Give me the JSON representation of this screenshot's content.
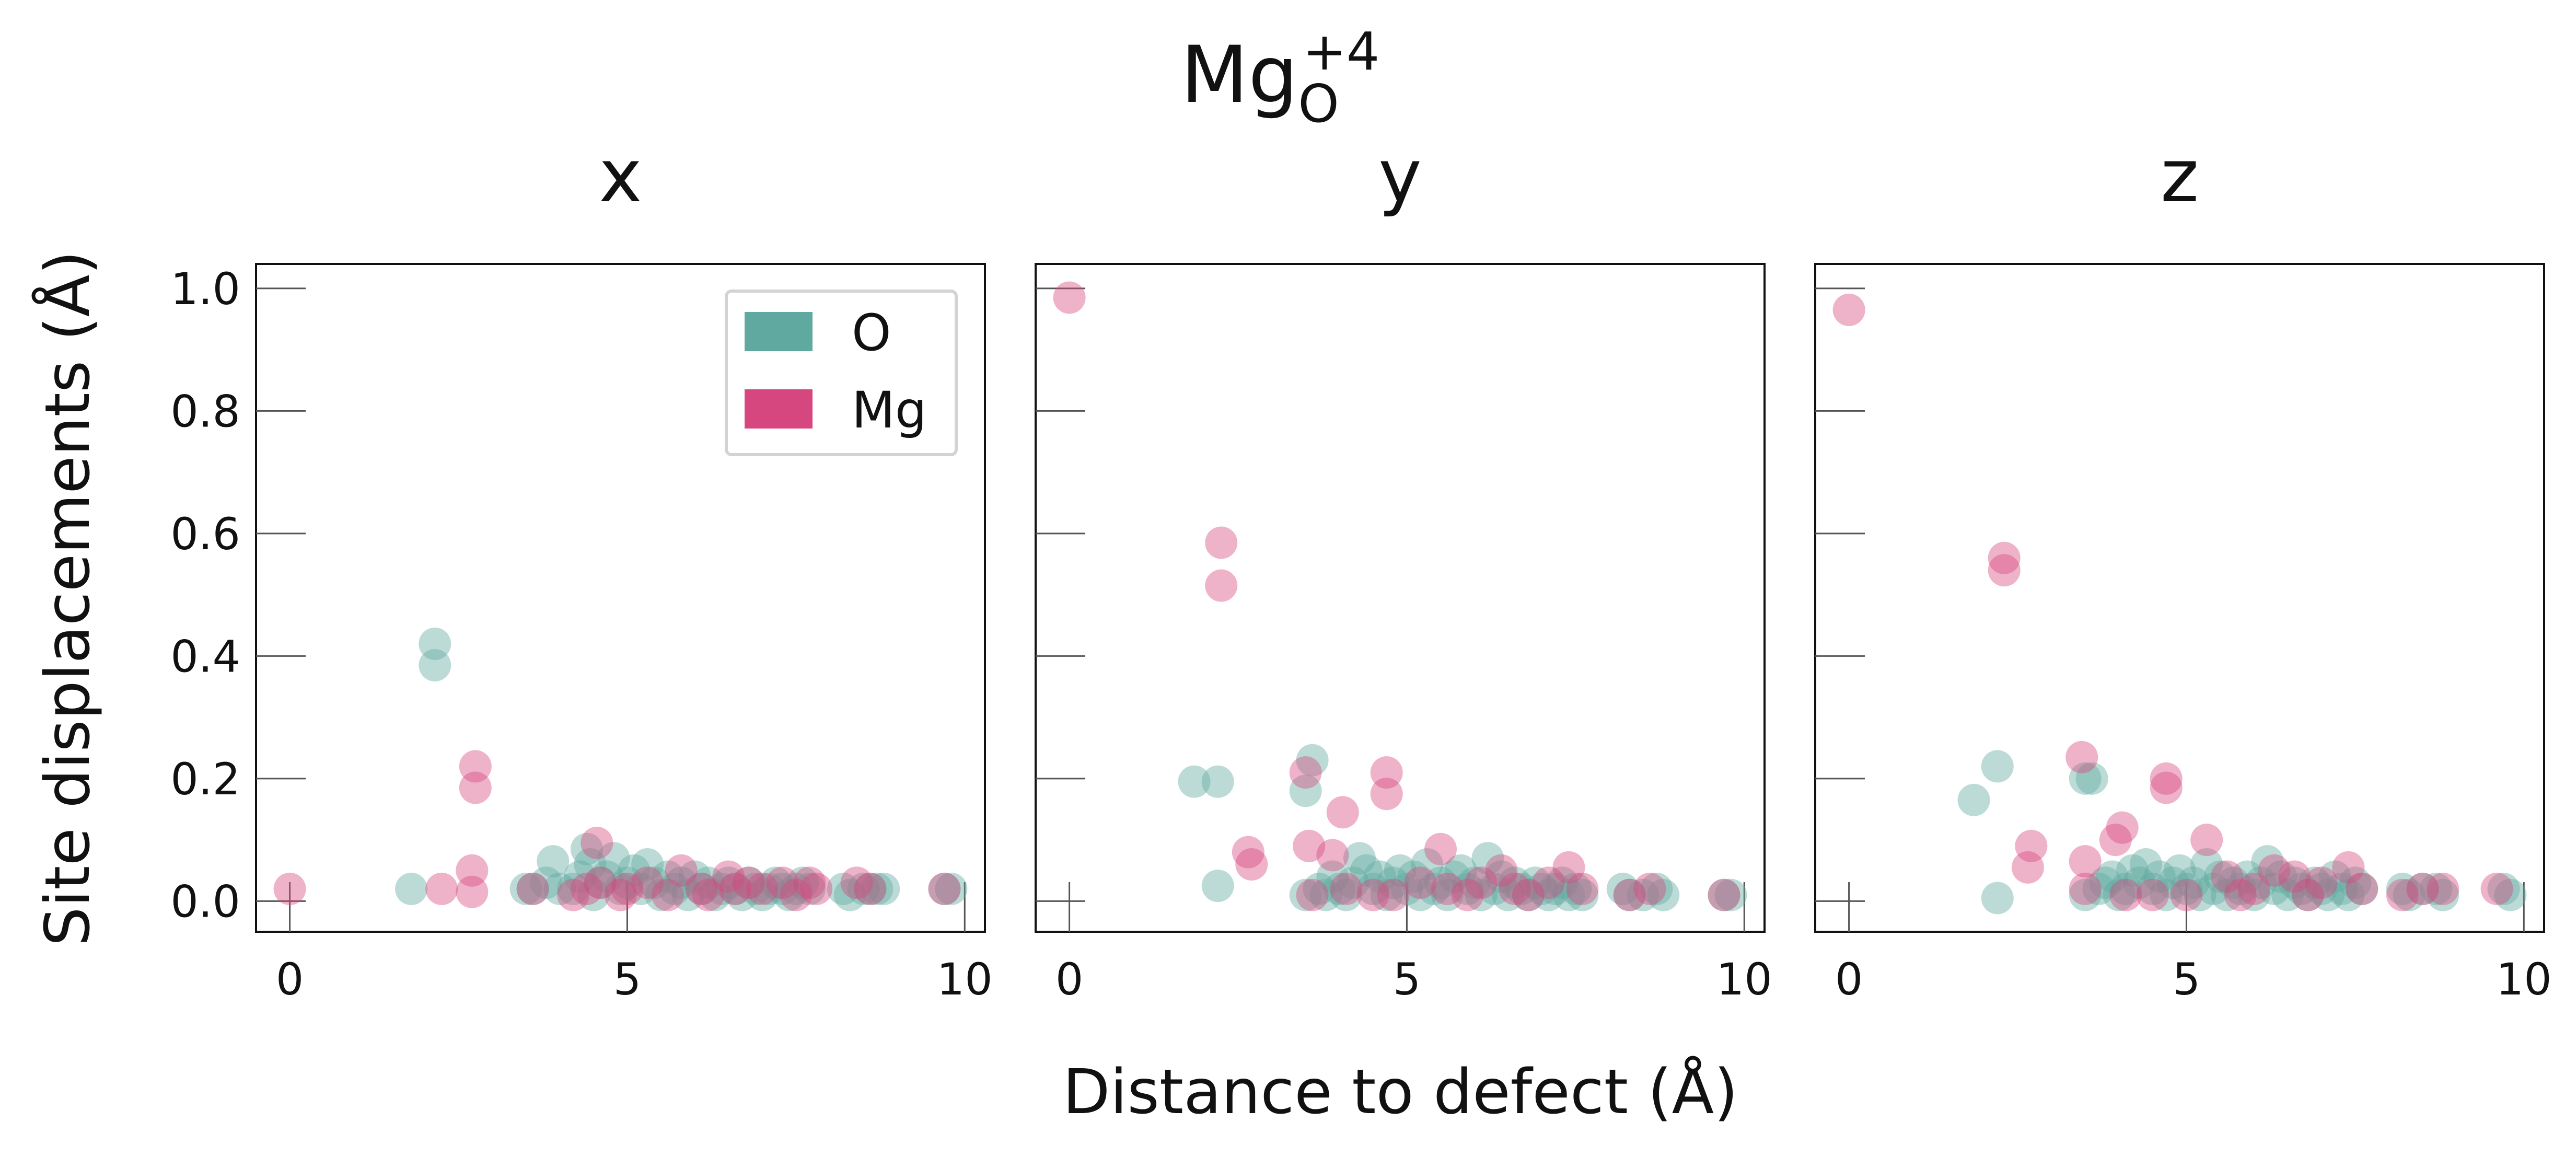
{
  "suptitle": {
    "base": "Mg",
    "superscript": "+4",
    "subscript": "O"
  },
  "xlabel": "Distance to defect (Å)",
  "ylabel": "Site displacements (Å)",
  "legend": {
    "placement": "top-right of first panel",
    "entries": [
      {
        "label": "O",
        "color": "#5fa9a0"
      },
      {
        "label": "Mg",
        "color": "#d6477f"
      }
    ]
  },
  "chart_data": [
    {
      "type": "scatter",
      "title": "x",
      "xlim": [
        -0.5,
        10.3
      ],
      "ylim": [
        -0.05,
        1.04
      ],
      "xticks": [
        0,
        5,
        10
      ],
      "xtick_labels": [
        "0",
        "5",
        "10"
      ],
      "yticks": [
        0.0,
        0.2,
        0.4,
        0.6,
        0.8,
        1.0
      ],
      "ytick_labels": [
        "0.0",
        "0.2",
        "0.4",
        "0.6",
        "0.8",
        "1.0"
      ],
      "series": [
        {
          "name": "O",
          "color": "#5fa9a0",
          "points": [
            [
              1.8,
              0.02
            ],
            [
              2.15,
              0.42
            ],
            [
              2.15,
              0.385
            ],
            [
              3.5,
              0.02
            ],
            [
              3.6,
              0.02
            ],
            [
              3.8,
              0.03
            ],
            [
              3.9,
              0.065
            ],
            [
              4.0,
              0.02
            ],
            [
              4.2,
              0.02
            ],
            [
              4.3,
              0.04
            ],
            [
              4.4,
              0.085
            ],
            [
              4.45,
              0.06
            ],
            [
              4.5,
              0.01
            ],
            [
              4.6,
              0.03
            ],
            [
              4.7,
              0.04
            ],
            [
              4.8,
              0.07
            ],
            [
              4.9,
              0.02
            ],
            [
              5.0,
              0.03
            ],
            [
              5.1,
              0.05
            ],
            [
              5.2,
              0.02
            ],
            [
              5.3,
              0.06
            ],
            [
              5.4,
              0.03
            ],
            [
              5.5,
              0.01
            ],
            [
              5.6,
              0.04
            ],
            [
              5.7,
              0.02
            ],
            [
              5.8,
              0.03
            ],
            [
              5.9,
              0.01
            ],
            [
              6.0,
              0.04
            ],
            [
              6.1,
              0.02
            ],
            [
              6.2,
              0.03
            ],
            [
              6.3,
              0.01
            ],
            [
              6.4,
              0.02
            ],
            [
              6.5,
              0.03
            ],
            [
              6.6,
              0.02
            ],
            [
              6.7,
              0.01
            ],
            [
              6.8,
              0.03
            ],
            [
              6.9,
              0.02
            ],
            [
              7.0,
              0.01
            ],
            [
              7.1,
              0.02
            ],
            [
              7.2,
              0.03
            ],
            [
              7.3,
              0.02
            ],
            [
              7.4,
              0.01
            ],
            [
              7.5,
              0.02
            ],
            [
              7.6,
              0.03
            ],
            [
              7.7,
              0.02
            ],
            [
              8.2,
              0.02
            ],
            [
              8.3,
              0.01
            ],
            [
              8.5,
              0.02
            ],
            [
              8.6,
              0.02
            ],
            [
              8.7,
              0.02
            ],
            [
              8.8,
              0.02
            ],
            [
              9.7,
              0.02
            ],
            [
              9.8,
              0.02
            ]
          ]
        },
        {
          "name": "Mg",
          "color": "#d6477f",
          "points": [
            [
              0.0,
              0.02
            ],
            [
              2.25,
              0.02
            ],
            [
              2.7,
              0.05
            ],
            [
              2.7,
              0.015
            ],
            [
              2.75,
              0.22
            ],
            [
              2.75,
              0.185
            ],
            [
              3.6,
              0.02
            ],
            [
              4.2,
              0.01
            ],
            [
              4.4,
              0.02
            ],
            [
              4.55,
              0.095
            ],
            [
              4.6,
              0.03
            ],
            [
              4.9,
              0.01
            ],
            [
              5.0,
              0.02
            ],
            [
              5.3,
              0.03
            ],
            [
              5.6,
              0.01
            ],
            [
              5.8,
              0.05
            ],
            [
              6.1,
              0.02
            ],
            [
              6.2,
              0.01
            ],
            [
              6.5,
              0.04
            ],
            [
              6.6,
              0.02
            ],
            [
              6.8,
              0.03
            ],
            [
              7.0,
              0.02
            ],
            [
              7.3,
              0.03
            ],
            [
              7.5,
              0.01
            ],
            [
              7.7,
              0.03
            ],
            [
              7.8,
              0.02
            ],
            [
              8.4,
              0.03
            ],
            [
              8.6,
              0.02
            ],
            [
              9.7,
              0.02
            ]
          ]
        }
      ]
    },
    {
      "type": "scatter",
      "title": "y",
      "xlim": [
        -0.5,
        10.3
      ],
      "ylim": [
        -0.05,
        1.04
      ],
      "xticks": [
        0,
        5,
        10
      ],
      "xtick_labels": [
        "0",
        "5",
        "10"
      ],
      "yticks": [
        0.0,
        0.2,
        0.4,
        0.6,
        0.8,
        1.0
      ],
      "ytick_labels": [
        "",
        "",
        "",
        "",
        "",
        ""
      ],
      "series": [
        {
          "name": "O",
          "color": "#5fa9a0",
          "points": [
            [
              1.85,
              0.195
            ],
            [
              2.2,
              0.195
            ],
            [
              2.2,
              0.025
            ],
            [
              3.5,
              0.01
            ],
            [
              3.5,
              0.18
            ],
            [
              3.6,
              0.23
            ],
            [
              3.7,
              0.02
            ],
            [
              3.8,
              0.01
            ],
            [
              3.9,
              0.04
            ],
            [
              4.0,
              0.02
            ],
            [
              4.1,
              0.01
            ],
            [
              4.2,
              0.03
            ],
            [
              4.3,
              0.07
            ],
            [
              4.4,
              0.05
            ],
            [
              4.5,
              0.02
            ],
            [
              4.6,
              0.04
            ],
            [
              4.7,
              0.01
            ],
            [
              4.8,
              0.03
            ],
            [
              4.9,
              0.05
            ],
            [
              5.0,
              0.02
            ],
            [
              5.1,
              0.04
            ],
            [
              5.2,
              0.01
            ],
            [
              5.3,
              0.06
            ],
            [
              5.4,
              0.02
            ],
            [
              5.5,
              0.03
            ],
            [
              5.6,
              0.01
            ],
            [
              5.7,
              0.04
            ],
            [
              5.8,
              0.05
            ],
            [
              5.9,
              0.02
            ],
            [
              6.0,
              0.03
            ],
            [
              6.1,
              0.01
            ],
            [
              6.2,
              0.07
            ],
            [
              6.3,
              0.02
            ],
            [
              6.4,
              0.04
            ],
            [
              6.5,
              0.01
            ],
            [
              6.6,
              0.03
            ],
            [
              6.7,
              0.02
            ],
            [
              6.8,
              0.01
            ],
            [
              6.9,
              0.03
            ],
            [
              7.0,
              0.02
            ],
            [
              7.1,
              0.01
            ],
            [
              7.2,
              0.02
            ],
            [
              7.3,
              0.03
            ],
            [
              7.4,
              0.01
            ],
            [
              7.5,
              0.02
            ],
            [
              7.6,
              0.01
            ],
            [
              8.2,
              0.02
            ],
            [
              8.3,
              0.01
            ],
            [
              8.5,
              0.01
            ],
            [
              8.7,
              0.02
            ],
            [
              8.8,
              0.01
            ],
            [
              9.7,
              0.01
            ],
            [
              9.8,
              0.01
            ]
          ]
        },
        {
          "name": "Mg",
          "color": "#d6477f",
          "points": [
            [
              0.0,
              0.985
            ],
            [
              2.25,
              0.585
            ],
            [
              2.25,
              0.515
            ],
            [
              2.65,
              0.08
            ],
            [
              2.7,
              0.06
            ],
            [
              3.5,
              0.21
            ],
            [
              3.55,
              0.09
            ],
            [
              3.6,
              0.01
            ],
            [
              3.9,
              0.075
            ],
            [
              4.05,
              0.145
            ],
            [
              4.1,
              0.02
            ],
            [
              4.5,
              0.01
            ],
            [
              4.7,
              0.21
            ],
            [
              4.7,
              0.175
            ],
            [
              4.8,
              0.01
            ],
            [
              5.2,
              0.03
            ],
            [
              5.5,
              0.085
            ],
            [
              5.6,
              0.02
            ],
            [
              5.9,
              0.01
            ],
            [
              6.1,
              0.03
            ],
            [
              6.4,
              0.05
            ],
            [
              6.6,
              0.02
            ],
            [
              6.8,
              0.01
            ],
            [
              7.1,
              0.03
            ],
            [
              7.4,
              0.055
            ],
            [
              7.6,
              0.02
            ],
            [
              8.3,
              0.01
            ],
            [
              8.6,
              0.02
            ],
            [
              9.7,
              0.01
            ]
          ]
        }
      ]
    },
    {
      "type": "scatter",
      "title": "z",
      "xlim": [
        -0.5,
        10.3
      ],
      "ylim": [
        -0.05,
        1.04
      ],
      "xticks": [
        0,
        5,
        10
      ],
      "xtick_labels": [
        "0",
        "5",
        "10"
      ],
      "yticks": [
        0.0,
        0.2,
        0.4,
        0.6,
        0.8,
        1.0
      ],
      "ytick_labels": [
        "",
        "",
        "",
        "",
        "",
        ""
      ],
      "series": [
        {
          "name": "O",
          "color": "#5fa9a0",
          "points": [
            [
              1.85,
              0.165
            ],
            [
              2.2,
              0.22
            ],
            [
              2.2,
              0.005
            ],
            [
              3.5,
              0.01
            ],
            [
              3.5,
              0.2
            ],
            [
              3.6,
              0.2
            ],
            [
              3.7,
              0.02
            ],
            [
              3.8,
              0.03
            ],
            [
              3.9,
              0.04
            ],
            [
              4.0,
              0.01
            ],
            [
              4.1,
              0.02
            ],
            [
              4.2,
              0.05
            ],
            [
              4.3,
              0.03
            ],
            [
              4.4,
              0.06
            ],
            [
              4.5,
              0.02
            ],
            [
              4.6,
              0.04
            ],
            [
              4.7,
              0.01
            ],
            [
              4.8,
              0.03
            ],
            [
              4.9,
              0.05
            ],
            [
              5.0,
              0.02
            ],
            [
              5.1,
              0.03
            ],
            [
              5.2,
              0.01
            ],
            [
              5.3,
              0.06
            ],
            [
              5.4,
              0.02
            ],
            [
              5.5,
              0.04
            ],
            [
              5.6,
              0.01
            ],
            [
              5.7,
              0.03
            ],
            [
              5.8,
              0.02
            ],
            [
              5.9,
              0.04
            ],
            [
              6.0,
              0.01
            ],
            [
              6.1,
              0.03
            ],
            [
              6.2,
              0.065
            ],
            [
              6.3,
              0.02
            ],
            [
              6.4,
              0.04
            ],
            [
              6.5,
              0.01
            ],
            [
              6.6,
              0.03
            ],
            [
              6.7,
              0.02
            ],
            [
              6.8,
              0.01
            ],
            [
              6.9,
              0.03
            ],
            [
              7.0,
              0.02
            ],
            [
              7.1,
              0.01
            ],
            [
              7.2,
              0.04
            ],
            [
              7.3,
              0.02
            ],
            [
              7.4,
              0.01
            ],
            [
              7.5,
              0.03
            ],
            [
              7.6,
              0.02
            ],
            [
              8.2,
              0.02
            ],
            [
              8.3,
              0.01
            ],
            [
              8.5,
              0.02
            ],
            [
              8.7,
              0.02
            ],
            [
              8.8,
              0.01
            ],
            [
              9.7,
              0.02
            ],
            [
              9.8,
              0.01
            ]
          ]
        },
        {
          "name": "Mg",
          "color": "#d6477f",
          "points": [
            [
              0.0,
              0.965
            ],
            [
              2.3,
              0.56
            ],
            [
              2.3,
              0.54
            ],
            [
              2.7,
              0.09
            ],
            [
              2.65,
              0.055
            ],
            [
              3.45,
              0.235
            ],
            [
              3.5,
              0.065
            ],
            [
              3.5,
              0.02
            ],
            [
              3.95,
              0.1
            ],
            [
              4.05,
              0.12
            ],
            [
              4.1,
              0.01
            ],
            [
              4.5,
              0.01
            ],
            [
              4.7,
              0.2
            ],
            [
              4.7,
              0.185
            ],
            [
              5.0,
              0.01
            ],
            [
              5.3,
              0.1
            ],
            [
              5.6,
              0.04
            ],
            [
              5.8,
              0.01
            ],
            [
              6.0,
              0.02
            ],
            [
              6.3,
              0.05
            ],
            [
              6.6,
              0.04
            ],
            [
              6.8,
              0.01
            ],
            [
              7.0,
              0.03
            ],
            [
              7.4,
              0.055
            ],
            [
              7.6,
              0.02
            ],
            [
              8.2,
              0.01
            ],
            [
              8.5,
              0.02
            ],
            [
              8.8,
              0.02
            ],
            [
              9.6,
              0.02
            ]
          ]
        }
      ]
    }
  ]
}
